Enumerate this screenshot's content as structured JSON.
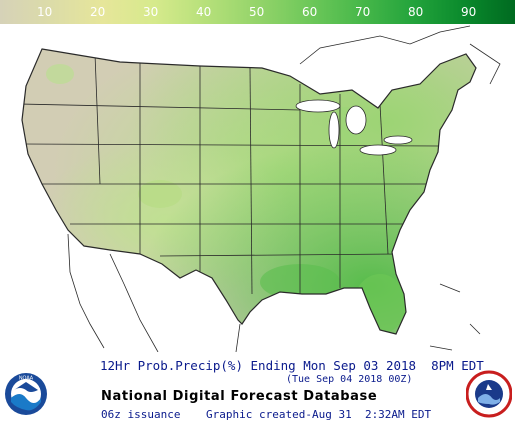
{
  "legend": {
    "ticks": [
      "10",
      "20",
      "30",
      "40",
      "50",
      "60",
      "70",
      "80",
      "90"
    ],
    "colors": [
      "#d6d2b8",
      "#e6e69a",
      "#b6e07a",
      "#6ec85a",
      "#24a43c",
      "#006a20"
    ]
  },
  "caption": {
    "product": "12Hr Prob.Precip(%) Ending Mon Sep 03 2018  8PM EDT",
    "valid_utc": "(Tue Sep 04 2018 00Z)"
  },
  "footer": {
    "title": "National Digital Forecast Database",
    "issuance": "06z issuance",
    "graphic_created": "Graphic created-Aug 31  2:32AM EDT"
  },
  "logos": {
    "left": "NOAA",
    "right": "NATIONAL WEATHER SERVICE"
  },
  "map": {
    "land_dry_color": "#d2cdb4",
    "land_wet_color": "#8ed068",
    "water_color": "#ffffff",
    "border_color": "#2a2a2a"
  }
}
